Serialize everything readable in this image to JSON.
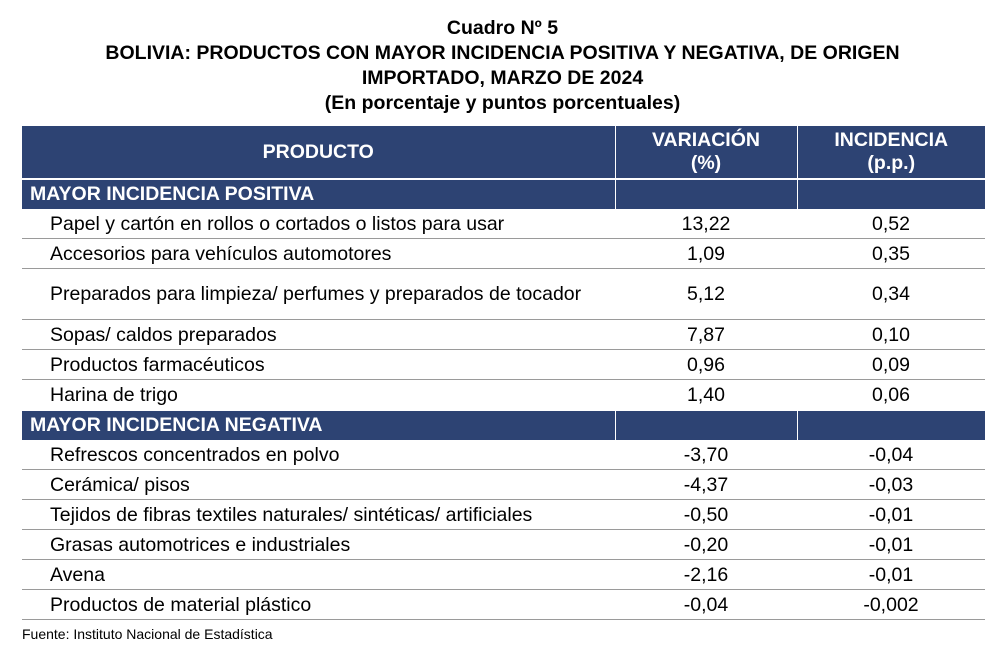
{
  "title": {
    "line1": "Cuadro Nº 5",
    "line2": "BOLIVIA: PRODUCTOS CON MAYOR INCIDENCIA POSITIVA Y NEGATIVA, DE ORIGEN",
    "line3": "IMPORTADO, MARZO DE 2024",
    "line4": "(En porcentaje y puntos porcentuales)"
  },
  "table": {
    "headers": {
      "producto": "PRODUCTO",
      "variacion_l1": "VARIACIÓN",
      "variacion_l2": "(%)",
      "incidencia_l1": "INCIDENCIA",
      "incidencia_l2": "(p.p.)"
    },
    "sections": [
      {
        "label": "MAYOR INCIDENCIA POSITIVA",
        "rows": [
          {
            "producto": "Papel y cartón en rollos o cortados o listos para usar",
            "variacion": "13,22",
            "incidencia": "0,52"
          },
          {
            "producto": "Accesorios para vehículos automotores",
            "variacion": "1,09",
            "incidencia": "0,35"
          },
          {
            "producto": "Preparados para limpieza/ perfumes y preparados de tocador",
            "variacion": "5,12",
            "incidencia": "0,34"
          },
          {
            "producto": "Sopas/ caldos preparados",
            "variacion": "7,87",
            "incidencia": "0,10"
          },
          {
            "producto": "Productos farmacéuticos",
            "variacion": "0,96",
            "incidencia": "0,09"
          },
          {
            "producto": "Harina de trigo",
            "variacion": "1,40",
            "incidencia": "0,06"
          }
        ]
      },
      {
        "label": "MAYOR INCIDENCIA NEGATIVA",
        "rows": [
          {
            "producto": "Refrescos concentrados en polvo",
            "variacion": "-3,70",
            "incidencia": "-0,04"
          },
          {
            "producto": "Cerámica/ pisos",
            "variacion": "-4,37",
            "incidencia": "-0,03"
          },
          {
            "producto": "Tejidos de fibras textiles naturales/ sintéticas/ artificiales",
            "variacion": "-0,50",
            "incidencia": "-0,01"
          },
          {
            "producto": "Grasas automotrices e industriales",
            "variacion": "-0,20",
            "incidencia": "-0,01"
          },
          {
            "producto": "Avena",
            "variacion": "-2,16",
            "incidencia": "-0,01"
          },
          {
            "producto": "Productos de material plástico",
            "variacion": "-0,04",
            "incidencia": "-0,002"
          }
        ]
      }
    ]
  },
  "footer": "Fuente: Instituto Nacional de Estadística",
  "colors": {
    "header_bg": "#2d4373",
    "header_text": "#ffffff"
  }
}
